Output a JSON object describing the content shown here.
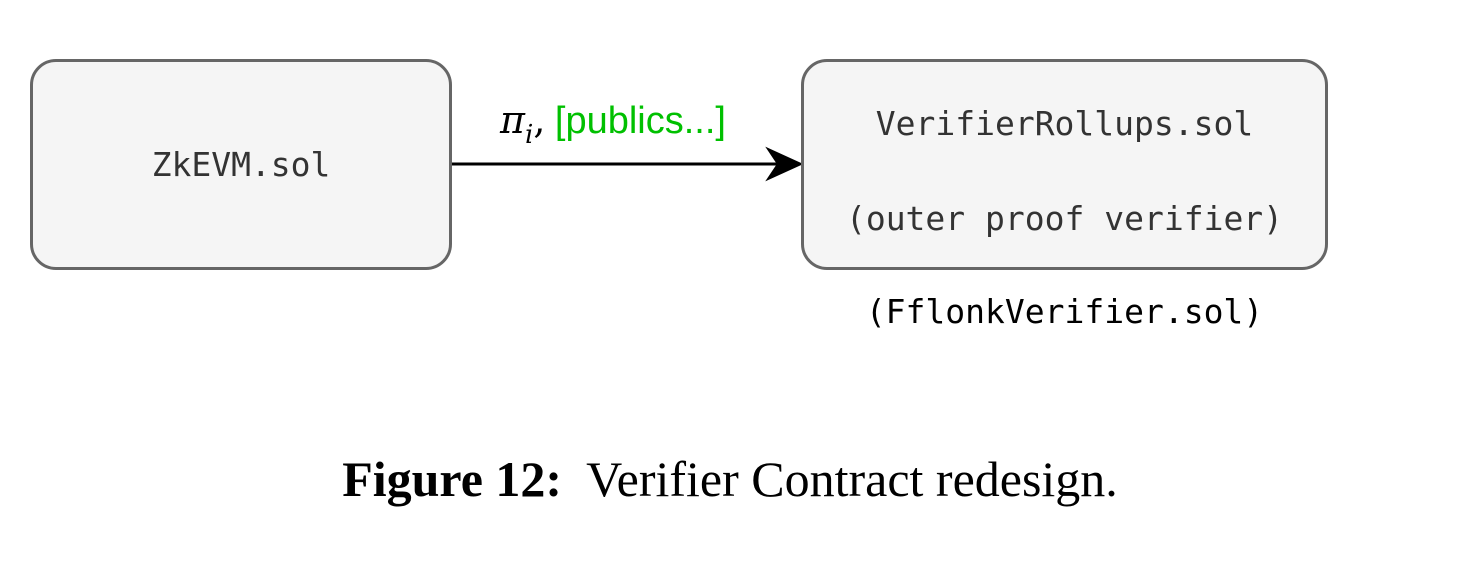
{
  "nodes": {
    "zkevm": {
      "label": "ZkEVM.sol"
    },
    "verifier": {
      "line1": "VerifierRollups.sol",
      "line2": "(outer proof verifier)"
    }
  },
  "verifier_subcaption": "(FflonkVerifier.sol)",
  "edge": {
    "pi_symbol": "π",
    "pi_subscript": "i",
    "separator": ",",
    "publics": "[publics...]",
    "publics_color": "#00c000"
  },
  "caption": {
    "label": "Figure 12:",
    "text": "Verifier Contract redesign."
  }
}
